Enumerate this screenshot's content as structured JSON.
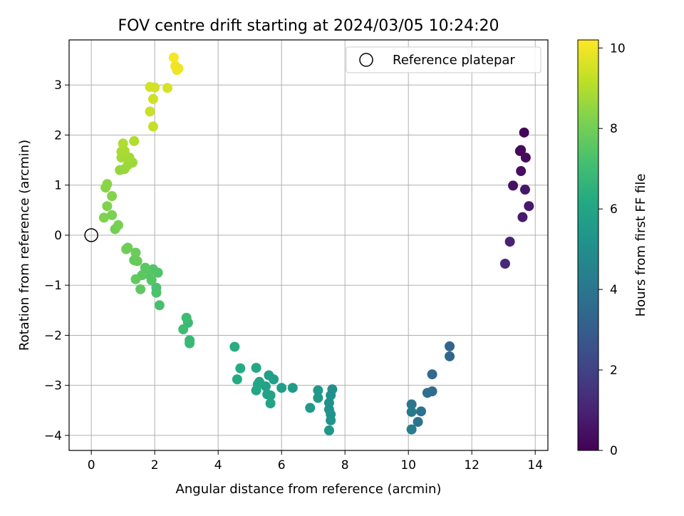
{
  "chart_data": {
    "type": "scatter",
    "title": "FOV centre drift starting at 2024/03/05 10:24:20",
    "xlabel": "Angular distance from reference (arcmin)",
    "ylabel": "Rotation from reference (arcmin)",
    "xlim": [
      -0.7,
      14.4
    ],
    "ylim": [
      -4.3,
      3.9
    ],
    "xticks": [
      0,
      2,
      4,
      6,
      8,
      10,
      12,
      14
    ],
    "yticks": [
      -4,
      -3,
      -2,
      -1,
      0,
      1,
      2,
      3
    ],
    "grid": true,
    "legend": {
      "position": "top-right",
      "entries": [
        "Reference platepar"
      ]
    },
    "reference": {
      "x": 0,
      "y": 0
    },
    "colorbar": {
      "label": "Hours from first FF file",
      "min": 0,
      "max": 10.2,
      "ticks": [
        0,
        2,
        4,
        6,
        8,
        10
      ],
      "colormap": "viridis"
    },
    "series": [
      {
        "points": [
          {
            "x": 13.65,
            "y": 2.05,
            "h": 0.1
          },
          {
            "x": 13.52,
            "y": 1.68,
            "h": 0.2
          },
          {
            "x": 13.55,
            "y": 1.7,
            "h": 0.25
          },
          {
            "x": 13.7,
            "y": 1.55,
            "h": 0.3
          },
          {
            "x": 13.55,
            "y": 1.28,
            "h": 0.4
          },
          {
            "x": 13.3,
            "y": 0.99,
            "h": 0.5
          },
          {
            "x": 13.68,
            "y": 0.91,
            "h": 0.6
          },
          {
            "x": 13.8,
            "y": 0.58,
            "h": 0.7
          },
          {
            "x": 13.6,
            "y": 0.36,
            "h": 0.8
          },
          {
            "x": 13.2,
            "y": -0.13,
            "h": 1.0
          },
          {
            "x": 13.05,
            "y": -0.57,
            "h": 1.2
          },
          {
            "x": 11.3,
            "y": -2.22,
            "h": 3.3
          },
          {
            "x": 11.3,
            "y": -2.42,
            "h": 3.4
          },
          {
            "x": 10.75,
            "y": -2.78,
            "h": 3.5
          },
          {
            "x": 10.75,
            "y": -3.12,
            "h": 3.6
          },
          {
            "x": 10.6,
            "y": -3.15,
            "h": 3.7
          },
          {
            "x": 10.4,
            "y": -3.52,
            "h": 3.8
          },
          {
            "x": 10.3,
            "y": -3.73,
            "h": 3.9
          },
          {
            "x": 10.1,
            "y": -3.38,
            "h": 4.0
          },
          {
            "x": 10.1,
            "y": -3.53,
            "h": 4.1
          },
          {
            "x": 10.1,
            "y": -3.88,
            "h": 4.2
          },
          {
            "x": 7.6,
            "y": -3.08,
            "h": 5.0
          },
          {
            "x": 7.55,
            "y": -3.2,
            "h": 5.05
          },
          {
            "x": 7.5,
            "y": -3.35,
            "h": 5.1
          },
          {
            "x": 7.5,
            "y": -3.48,
            "h": 5.15
          },
          {
            "x": 7.55,
            "y": -3.58,
            "h": 5.2
          },
          {
            "x": 7.55,
            "y": -3.7,
            "h": 5.25
          },
          {
            "x": 7.5,
            "y": -3.9,
            "h": 5.3
          },
          {
            "x": 7.15,
            "y": -3.1,
            "h": 5.4
          },
          {
            "x": 7.15,
            "y": -3.25,
            "h": 5.45
          },
          {
            "x": 6.9,
            "y": -3.45,
            "h": 5.5
          },
          {
            "x": 6.35,
            "y": -3.05,
            "h": 5.6
          },
          {
            "x": 6.0,
            "y": -3.05,
            "h": 5.65
          },
          {
            "x": 5.75,
            "y": -2.88,
            "h": 5.7
          },
          {
            "x": 5.6,
            "y": -2.8,
            "h": 5.75
          },
          {
            "x": 5.5,
            "y": -3.02,
            "h": 5.8
          },
          {
            "x": 5.55,
            "y": -3.18,
            "h": 5.85
          },
          {
            "x": 5.65,
            "y": -3.2,
            "h": 5.9
          },
          {
            "x": 5.65,
            "y": -3.36,
            "h": 5.95
          },
          {
            "x": 5.3,
            "y": -2.93,
            "h": 6.0
          },
          {
            "x": 5.25,
            "y": -2.98,
            "h": 6.02
          },
          {
            "x": 5.2,
            "y": -3.1,
            "h": 6.05
          },
          {
            "x": 5.2,
            "y": -2.65,
            "h": 6.1
          },
          {
            "x": 4.7,
            "y": -2.66,
            "h": 6.2
          },
          {
            "x": 4.6,
            "y": -2.88,
            "h": 6.25
          },
          {
            "x": 4.52,
            "y": -2.23,
            "h": 6.3
          },
          {
            "x": 3.1,
            "y": -2.1,
            "h": 6.8
          },
          {
            "x": 3.1,
            "y": -2.16,
            "h": 6.85
          },
          {
            "x": 3.05,
            "y": -1.75,
            "h": 6.9
          },
          {
            "x": 3.0,
            "y": -1.65,
            "h": 6.95
          },
          {
            "x": 2.9,
            "y": -1.88,
            "h": 7.0
          },
          {
            "x": 2.15,
            "y": -1.4,
            "h": 7.2
          },
          {
            "x": 2.05,
            "y": -1.05,
            "h": 7.25
          },
          {
            "x": 2.05,
            "y": -1.15,
            "h": 7.3
          },
          {
            "x": 2.1,
            "y": -0.75,
            "h": 7.35
          },
          {
            "x": 1.95,
            "y": -0.68,
            "h": 7.4
          },
          {
            "x": 1.9,
            "y": -0.9,
            "h": 7.45
          },
          {
            "x": 1.8,
            "y": -0.78,
            "h": 7.5
          },
          {
            "x": 1.7,
            "y": -0.65,
            "h": 7.55
          },
          {
            "x": 1.6,
            "y": -0.8,
            "h": 7.6
          },
          {
            "x": 1.55,
            "y": -1.08,
            "h": 7.65
          },
          {
            "x": 1.4,
            "y": -0.88,
            "h": 7.7
          },
          {
            "x": 1.35,
            "y": -0.5,
            "h": 7.75
          },
          {
            "x": 1.45,
            "y": -0.52,
            "h": 7.8
          },
          {
            "x": 1.4,
            "y": -0.35,
            "h": 7.85
          },
          {
            "x": 1.15,
            "y": -0.25,
            "h": 7.9
          },
          {
            "x": 1.1,
            "y": -0.28,
            "h": 7.95
          },
          {
            "x": 0.75,
            "y": 0.12,
            "h": 8.05
          },
          {
            "x": 0.85,
            "y": 0.2,
            "h": 8.1
          },
          {
            "x": 0.65,
            "y": 0.4,
            "h": 8.15
          },
          {
            "x": 0.4,
            "y": 0.35,
            "h": 8.2
          },
          {
            "x": 0.5,
            "y": 0.58,
            "h": 8.25
          },
          {
            "x": 0.65,
            "y": 0.78,
            "h": 8.3
          },
          {
            "x": 0.45,
            "y": 0.95,
            "h": 8.35
          },
          {
            "x": 0.5,
            "y": 1.02,
            "h": 8.4
          },
          {
            "x": 0.9,
            "y": 1.3,
            "h": 8.55
          },
          {
            "x": 1.05,
            "y": 1.32,
            "h": 8.6
          },
          {
            "x": 1.15,
            "y": 1.4,
            "h": 8.65
          },
          {
            "x": 1.3,
            "y": 1.45,
            "h": 8.7
          },
          {
            "x": 1.2,
            "y": 1.55,
            "h": 8.75
          },
          {
            "x": 0.95,
            "y": 1.55,
            "h": 8.8
          },
          {
            "x": 0.95,
            "y": 1.67,
            "h": 8.85
          },
          {
            "x": 1.05,
            "y": 1.68,
            "h": 8.9
          },
          {
            "x": 1.0,
            "y": 1.83,
            "h": 8.95
          },
          {
            "x": 1.35,
            "y": 1.88,
            "h": 9.0
          },
          {
            "x": 1.95,
            "y": 2.17,
            "h": 9.3
          },
          {
            "x": 1.85,
            "y": 2.47,
            "h": 9.35
          },
          {
            "x": 1.95,
            "y": 2.72,
            "h": 9.45
          },
          {
            "x": 1.85,
            "y": 2.96,
            "h": 9.5
          },
          {
            "x": 2.0,
            "y": 2.95,
            "h": 9.55
          },
          {
            "x": 2.4,
            "y": 2.94,
            "h": 9.6
          },
          {
            "x": 2.7,
            "y": 3.3,
            "h": 9.9
          },
          {
            "x": 2.75,
            "y": 3.33,
            "h": 9.95
          },
          {
            "x": 2.65,
            "y": 3.38,
            "h": 10.0
          },
          {
            "x": 2.6,
            "y": 3.55,
            "h": 10.1
          }
        ]
      }
    ]
  }
}
